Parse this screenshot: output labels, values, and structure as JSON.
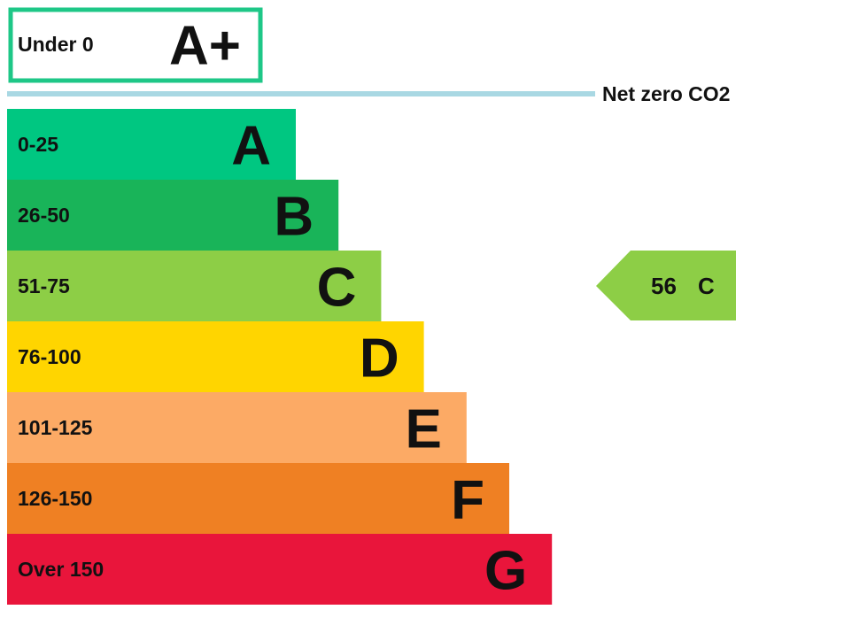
{
  "top": {
    "label": "Under 0",
    "rating": "A+",
    "color": "#1ec787"
  },
  "net_zero": {
    "label": "Net zero CO2",
    "color": "#a9d8e3"
  },
  "bands": [
    {
      "range": "0-25",
      "rating": "A",
      "color": "#00c781"
    },
    {
      "range": "26-50",
      "rating": "B",
      "color": "#19b459"
    },
    {
      "range": "51-75",
      "rating": "C",
      "color": "#8dce46"
    },
    {
      "range": "76-100",
      "rating": "D",
      "color": "#ffd500"
    },
    {
      "range": "101-125",
      "rating": "E",
      "color": "#fcaa65"
    },
    {
      "range": "126-150",
      "rating": "F",
      "color": "#ef8023"
    },
    {
      "range": "Over 150",
      "rating": "G",
      "color": "#e9153b"
    }
  ],
  "current": {
    "value": 56,
    "rating": "C"
  }
}
